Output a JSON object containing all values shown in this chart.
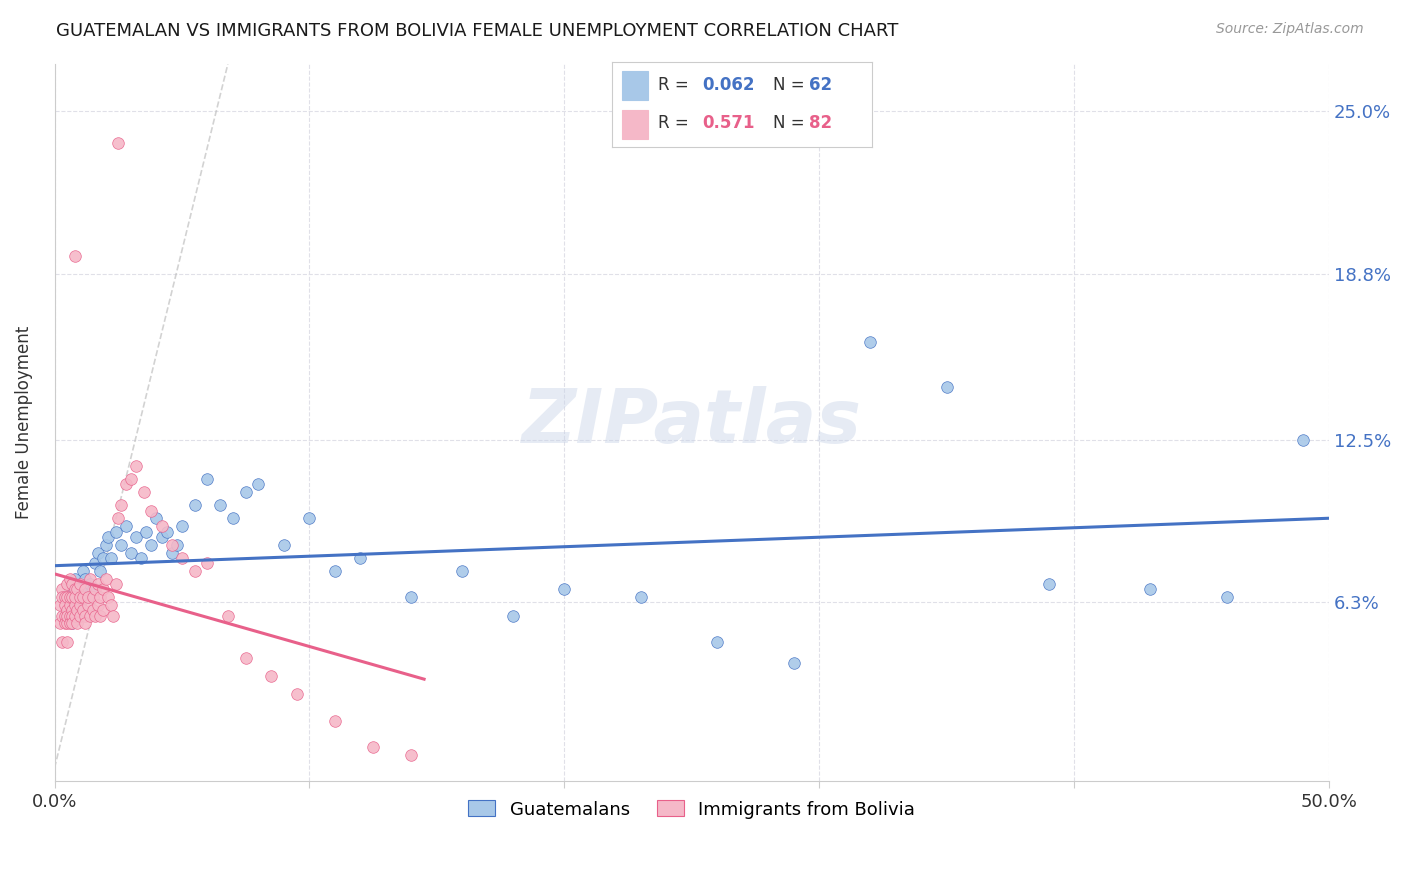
{
  "title": "GUATEMALAN VS IMMIGRANTS FROM BOLIVIA FEMALE UNEMPLOYMENT CORRELATION CHART",
  "source": "Source: ZipAtlas.com",
  "ylabel": "Female Unemployment",
  "xlim": [
    0.0,
    0.5
  ],
  "ylim": [
    -0.005,
    0.268
  ],
  "yticks": [
    0.063,
    0.125,
    0.188,
    0.25
  ],
  "ytick_labels": [
    "6.3%",
    "12.5%",
    "18.8%",
    "25.0%"
  ],
  "xticks": [
    0.0,
    0.1,
    0.2,
    0.3,
    0.4,
    0.5
  ],
  "xtick_labels": [
    "0.0%",
    "",
    "",
    "",
    "",
    "50.0%"
  ],
  "legend_label1": "Guatemalans",
  "legend_label2": "Immigrants from Bolivia",
  "r1": "0.062",
  "n1": "62",
  "r2": "0.571",
  "n2": "82",
  "color_blue": "#a8c8e8",
  "color_pink": "#f5b8c8",
  "line_blue": "#4472c4",
  "line_pink": "#e8608a",
  "line_diag": "#c0c0c0",
  "guatemalan_x": [
    0.004,
    0.005,
    0.005,
    0.006,
    0.006,
    0.007,
    0.007,
    0.008,
    0.008,
    0.009,
    0.009,
    0.01,
    0.01,
    0.011,
    0.012,
    0.013,
    0.014,
    0.015,
    0.016,
    0.017,
    0.018,
    0.019,
    0.02,
    0.021,
    0.022,
    0.024,
    0.026,
    0.028,
    0.03,
    0.032,
    0.034,
    0.036,
    0.038,
    0.04,
    0.042,
    0.044,
    0.046,
    0.048,
    0.05,
    0.055,
    0.06,
    0.065,
    0.07,
    0.075,
    0.08,
    0.09,
    0.1,
    0.11,
    0.12,
    0.14,
    0.16,
    0.18,
    0.2,
    0.23,
    0.26,
    0.29,
    0.32,
    0.35,
    0.39,
    0.43,
    0.46,
    0.49
  ],
  "guatemalan_y": [
    0.065,
    0.06,
    0.058,
    0.068,
    0.062,
    0.07,
    0.055,
    0.065,
    0.072,
    0.06,
    0.058,
    0.068,
    0.063,
    0.075,
    0.072,
    0.065,
    0.07,
    0.068,
    0.078,
    0.082,
    0.075,
    0.08,
    0.085,
    0.088,
    0.08,
    0.09,
    0.085,
    0.092,
    0.082,
    0.088,
    0.08,
    0.09,
    0.085,
    0.095,
    0.088,
    0.09,
    0.082,
    0.085,
    0.092,
    0.1,
    0.11,
    0.1,
    0.095,
    0.105,
    0.108,
    0.085,
    0.095,
    0.075,
    0.08,
    0.065,
    0.075,
    0.058,
    0.068,
    0.065,
    0.048,
    0.04,
    0.162,
    0.145,
    0.07,
    0.068,
    0.065,
    0.125
  ],
  "bolivia_x": [
    0.002,
    0.002,
    0.003,
    0.003,
    0.003,
    0.003,
    0.004,
    0.004,
    0.004,
    0.004,
    0.005,
    0.005,
    0.005,
    0.005,
    0.005,
    0.005,
    0.006,
    0.006,
    0.006,
    0.006,
    0.006,
    0.007,
    0.007,
    0.007,
    0.007,
    0.007,
    0.008,
    0.008,
    0.008,
    0.008,
    0.009,
    0.009,
    0.009,
    0.01,
    0.01,
    0.01,
    0.01,
    0.011,
    0.011,
    0.012,
    0.012,
    0.012,
    0.013,
    0.013,
    0.014,
    0.014,
    0.015,
    0.015,
    0.016,
    0.016,
    0.017,
    0.017,
    0.018,
    0.018,
    0.019,
    0.019,
    0.02,
    0.021,
    0.022,
    0.023,
    0.024,
    0.025,
    0.026,
    0.028,
    0.03,
    0.032,
    0.035,
    0.038,
    0.042,
    0.046,
    0.05,
    0.055,
    0.06,
    0.068,
    0.075,
    0.085,
    0.095,
    0.11,
    0.125,
    0.14,
    0.025,
    0.008
  ],
  "bolivia_y": [
    0.062,
    0.055,
    0.068,
    0.058,
    0.065,
    0.048,
    0.058,
    0.065,
    0.062,
    0.055,
    0.06,
    0.055,
    0.065,
    0.058,
    0.07,
    0.048,
    0.062,
    0.058,
    0.072,
    0.065,
    0.055,
    0.06,
    0.065,
    0.058,
    0.07,
    0.055,
    0.062,
    0.068,
    0.058,
    0.065,
    0.06,
    0.055,
    0.068,
    0.062,
    0.058,
    0.065,
    0.07,
    0.06,
    0.065,
    0.058,
    0.068,
    0.055,
    0.062,
    0.065,
    0.058,
    0.072,
    0.06,
    0.065,
    0.058,
    0.068,
    0.062,
    0.07,
    0.058,
    0.065,
    0.06,
    0.068,
    0.072,
    0.065,
    0.062,
    0.058,
    0.07,
    0.095,
    0.1,
    0.108,
    0.11,
    0.115,
    0.105,
    0.098,
    0.092,
    0.085,
    0.08,
    0.075,
    0.078,
    0.058,
    0.042,
    0.035,
    0.028,
    0.018,
    0.008,
    0.005,
    0.238,
    0.195
  ]
}
